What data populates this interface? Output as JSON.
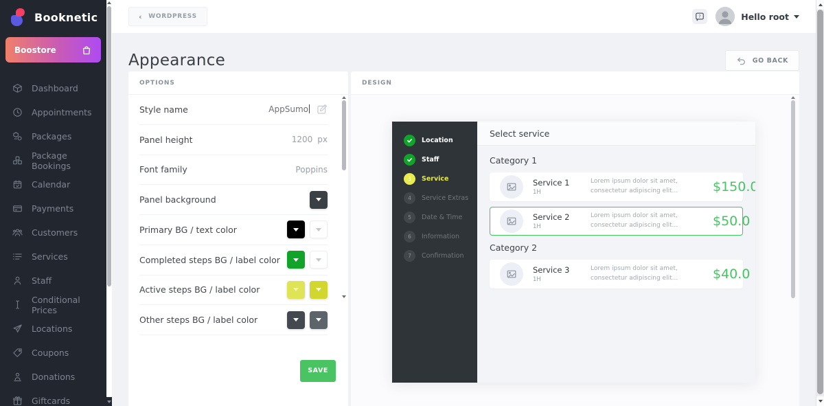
{
  "brand": {
    "name": "Booknetic",
    "store_button": "Boostore"
  },
  "topbar": {
    "back_label": "WORDPRESS",
    "greeting": "Hello root"
  },
  "sidebar": {
    "items": [
      {
        "label": "Dashboard",
        "icon": "dashboard"
      },
      {
        "label": "Appointments",
        "icon": "appointments"
      },
      {
        "label": "Packages",
        "icon": "packages"
      },
      {
        "label": "Package Bookings",
        "icon": "package-bookings"
      },
      {
        "label": "Calendar",
        "icon": "calendar"
      },
      {
        "label": "Payments",
        "icon": "payments"
      },
      {
        "label": "Customers",
        "icon": "customers"
      },
      {
        "label": "Services",
        "icon": "services"
      },
      {
        "label": "Staff",
        "icon": "staff"
      },
      {
        "label": "Conditional Prices",
        "icon": "conditional-prices"
      },
      {
        "label": "Locations",
        "icon": "locations"
      },
      {
        "label": "Coupons",
        "icon": "coupons"
      },
      {
        "label": "Donations",
        "icon": "donations"
      },
      {
        "label": "Giftcards",
        "icon": "giftcards"
      }
    ]
  },
  "page": {
    "title": "Appearance",
    "go_back_label": "GO BACK"
  },
  "options": {
    "header": "OPTIONS",
    "save_label": "SAVE",
    "rows": [
      {
        "id": "style-name",
        "label": "Style name",
        "type": "input",
        "value": "AppSumo"
      },
      {
        "id": "panel-height",
        "label": "Panel height",
        "type": "value",
        "value": "1200",
        "unit": "px"
      },
      {
        "id": "font-family",
        "label": "Font family",
        "type": "value",
        "value": "Poppins"
      },
      {
        "id": "panel-background",
        "label": "Panel background",
        "type": "swatches",
        "swatches": [
          {
            "color": "#3b4046",
            "caret": "#ffffff",
            "light": false
          }
        ]
      },
      {
        "id": "primary-colors",
        "label": "Primary BG / text color",
        "type": "swatches",
        "swatches": [
          {
            "color": "#000000",
            "caret": "#ffffff",
            "light": false
          },
          {
            "color": "#ffffff",
            "caret": "#c3c8cf",
            "light": true
          }
        ]
      },
      {
        "id": "completed-steps-colors",
        "label": "Completed steps BG / label color",
        "type": "swatches",
        "swatches": [
          {
            "color": "#12a32b",
            "caret": "#ffffff",
            "light": false
          },
          {
            "color": "#ffffff",
            "caret": "#c3c8cf",
            "light": true
          }
        ]
      },
      {
        "id": "active-steps-colors",
        "label": "Active steps BG / label color",
        "type": "swatches",
        "swatches": [
          {
            "color": "#dfe356",
            "caret": "#f2f4b0",
            "light": false
          },
          {
            "color": "#d2d72f",
            "caret": "#ffffff",
            "light": false
          }
        ]
      },
      {
        "id": "other-steps-colors",
        "label": "Other steps BG / label color",
        "type": "swatches",
        "swatches": [
          {
            "color": "#44494f",
            "caret": "#ffffff",
            "light": false
          },
          {
            "color": "#5d646c",
            "caret": "#ffffff",
            "light": false
          }
        ]
      }
    ]
  },
  "design": {
    "header": "DESIGN",
    "widget": {
      "panel_title": "Select service",
      "steps": [
        {
          "num": "1",
          "label": "Location",
          "state": "completed"
        },
        {
          "num": "2",
          "label": "Staff",
          "state": "completed"
        },
        {
          "num": "3",
          "label": "Service",
          "state": "active"
        },
        {
          "num": "4",
          "label": "Service Extras",
          "state": "upcoming"
        },
        {
          "num": "5",
          "label": "Date & Time",
          "state": "upcoming"
        },
        {
          "num": "6",
          "label": "Information",
          "state": "upcoming"
        },
        {
          "num": "7",
          "label": "Confirmation",
          "state": "upcoming"
        }
      ],
      "categories": [
        {
          "name": "Category 1",
          "services": [
            {
              "name": "Service 1",
              "duration": "1H",
              "description": "Lorem ipsum dolor sit amet, consectetur adipiscing elit...",
              "price": "$150.0",
              "selected": false
            },
            {
              "name": "Service 2",
              "duration": "1H",
              "description": "Lorem ipsum dolor sit amet, consectetur adipiscing elit...",
              "price": "$50.0",
              "selected": true
            }
          ]
        },
        {
          "name": "Category 2",
          "services": [
            {
              "name": "Service 3",
              "duration": "1H",
              "description": "Lorem ipsum dolor sit amet, consectetur adipiscing elit...",
              "price": "$40.0",
              "selected": false
            }
          ]
        }
      ]
    }
  },
  "colors": {
    "accent_green": "#45c663",
    "save_button": "#4ac463",
    "steps_done": "#12a32b",
    "steps_active": "#e9ec4f",
    "panel_dark": "#2f3438",
    "brand_gradient_start": "#f0806a",
    "brand_gradient_end": "#ae4bf2"
  }
}
